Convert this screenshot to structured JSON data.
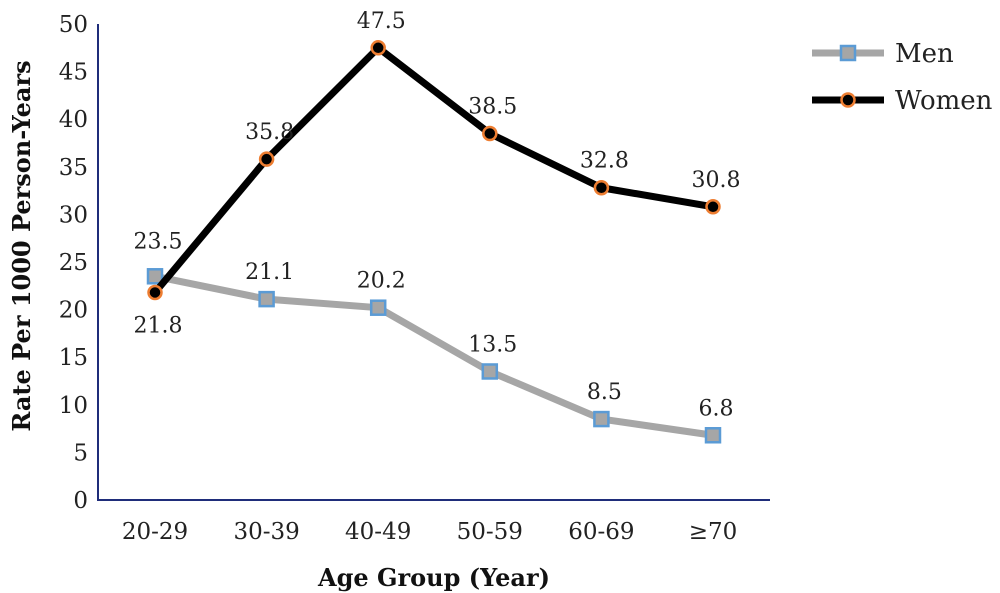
{
  "chart_data": {
    "type": "line",
    "categories": [
      "20-29",
      "30-39",
      "40-49",
      "50-59",
      "60-69",
      "≥70"
    ],
    "series": [
      {
        "name": "Men",
        "values": [
          23.5,
          21.1,
          20.2,
          13.5,
          8.5,
          6.8
        ],
        "labels": [
          "23.5",
          "21.1",
          "20.2",
          "13.5",
          "8.5",
          "6.8"
        ],
        "line_color": "#a6a6a6",
        "marker": "square",
        "marker_fill": "#a6a6a6",
        "marker_stroke": "#5b9bd5"
      },
      {
        "name": "Women",
        "values": [
          21.8,
          35.8,
          47.5,
          38.5,
          32.8,
          30.8
        ],
        "labels": [
          "21.8",
          "35.8",
          "47.5",
          "38.5",
          "32.8",
          "30.8"
        ],
        "line_color": "#000000",
        "marker": "circle",
        "marker_fill": "#000000",
        "marker_stroke": "#ed7d31"
      }
    ],
    "xlabel": "Age Group (Year)",
    "ylabel": "Rate Per 1000  Person-Years",
    "ylim": [
      0,
      50
    ],
    "yticks": [
      0,
      5,
      10,
      15,
      20,
      25,
      30,
      35,
      40,
      45,
      50
    ],
    "axis_color": "#1f2d7a",
    "grid": false,
    "legend_position": "top-right"
  }
}
